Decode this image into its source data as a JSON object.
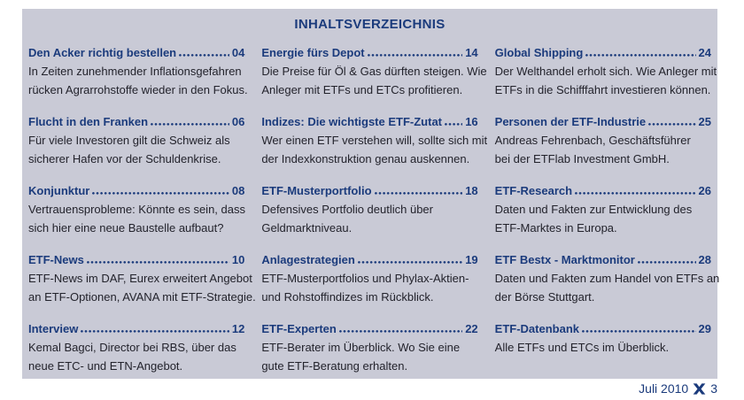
{
  "page": {
    "title": "INHALTSVERZEICHNIS",
    "footer": {
      "issue": "Juli 2010",
      "page_number": "3",
      "logo": "x-mark-icon"
    },
    "colors": {
      "panel_background": "#c9cad6",
      "navy_accent": "#1b3b7c",
      "body_text": "#23232c"
    }
  },
  "toc": {
    "columns": [
      {
        "entries": [
          {
            "title": "Den Acker richtig bestellen",
            "page": "04",
            "desc_lines": [
              "In Zeiten zunehmender Inflationsgefahren",
              "rücken Agrarrohstoffe wieder in den Fokus."
            ]
          },
          {
            "title": "Flucht in den Franken",
            "page": "06",
            "desc_lines": [
              "Für viele Investoren gilt die Schweiz als",
              "sicherer Hafen vor der Schuldenkrise."
            ]
          },
          {
            "title": "Konjunktur",
            "page": "08",
            "desc_lines": [
              "Vertrauensprobleme: Könnte es sein, dass",
              "sich hier eine neue Baustelle aufbaut?"
            ]
          },
          {
            "title": "ETF-News",
            "page": "10",
            "desc_lines": [
              "ETF-News im DAF, Eurex erweitert Angebot",
              "an ETF-Optionen, AVANA mit ETF-Strategie."
            ]
          },
          {
            "title": "Interview",
            "page": "12",
            "desc_lines": [
              "Kemal Bagci, Director bei RBS, über das",
              "neue ETC- und ETN-Angebot."
            ]
          }
        ]
      },
      {
        "entries": [
          {
            "title": "Energie fürs Depot",
            "page": "14",
            "desc_lines": [
              "Die Preise für Öl & Gas dürften steigen. Wie",
              "Anleger mit ETFs und ETCs profitieren."
            ]
          },
          {
            "title": "Indizes: Die wichtigste ETF-Zutat",
            "page": "16",
            "desc_lines": [
              "Wer einen ETF verstehen will, sollte sich mit",
              "der Indexkonstruktion genau auskennen."
            ]
          },
          {
            "title": "ETF-Musterportfolio",
            "page": "18",
            "desc_lines": [
              "Defensives Portfolio deutlich über",
              "Geldmarktniveau."
            ]
          },
          {
            "title": "Anlagestrategien",
            "page": "19",
            "desc_lines": [
              "ETF-Musterportfolios und Phylax-Aktien-",
              "und Rohstoffindizes im Rückblick."
            ]
          },
          {
            "title": "ETF-Experten",
            "page": "22",
            "desc_lines": [
              "ETF-Berater im Überblick. Wo Sie eine",
              "gute ETF-Beratung erhalten."
            ]
          }
        ]
      },
      {
        "entries": [
          {
            "title": "Global Shipping",
            "page": "24",
            "desc_lines": [
              "Der Welthandel erholt sich. Wie Anleger mit",
              "ETFs in die Schifffahrt investieren können."
            ]
          },
          {
            "title": "Personen der ETF-Industrie",
            "page": "25",
            "desc_lines": [
              "Andreas Fehrenbach, Geschäftsführer",
              "bei der ETFlab Investment GmbH."
            ]
          },
          {
            "title": "ETF-Research",
            "page": "26",
            "desc_lines": [
              "Daten und Fakten zur Entwicklung des",
              "ETF-Marktes in Europa."
            ]
          },
          {
            "title": "ETF Bestx - Marktmonitor",
            "page": "28",
            "desc_lines": [
              "Daten und Fakten zum Handel von ETFs an",
              "der Börse Stuttgart."
            ]
          },
          {
            "title": "ETF-Datenbank",
            "page": "29",
            "desc_lines": [
              "Alle ETFs und ETCs im Überblick."
            ]
          }
        ]
      }
    ]
  }
}
